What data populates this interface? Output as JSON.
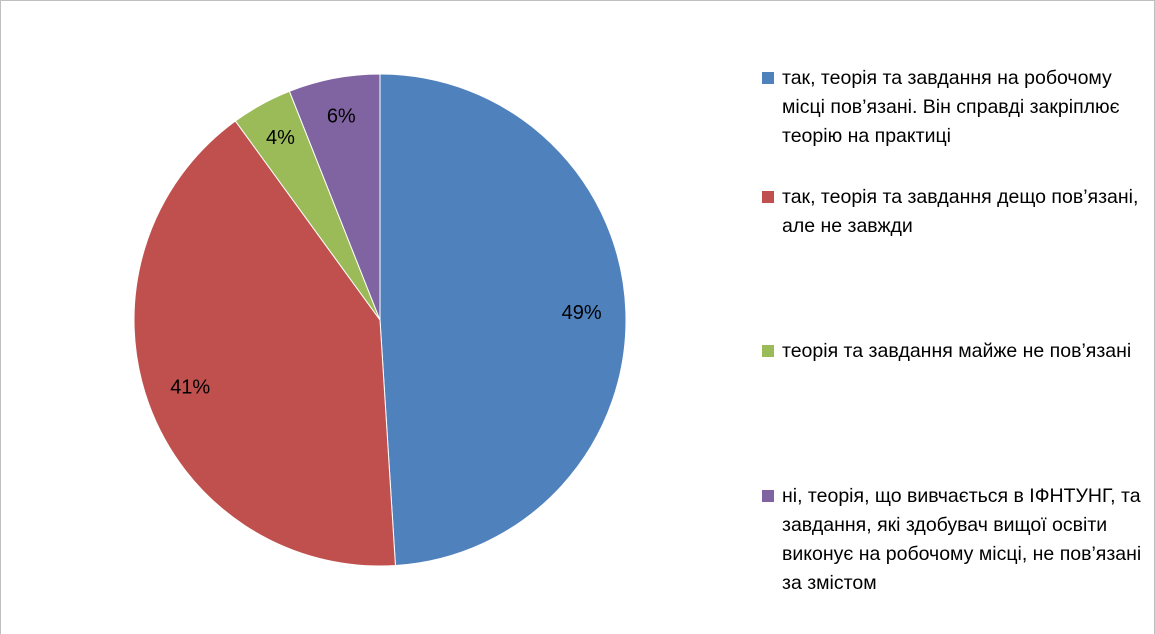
{
  "chart_data": {
    "type": "pie",
    "categories": [
      "так, теорія та завдання на робочому місці пов’язані. Він справді закріплює теорію на практиці",
      "так, теорія та завдання дещо пов’язані, але не завжди",
      "теорія та завдання майже не пов’язані",
      "ні, теорія, що вивчається в ІФНТУНГ, та завдання, які здобувач вищої освіти виконує на робочому місці, не пов’язані за змістом"
    ],
    "values": [
      49,
      41,
      4,
      6
    ],
    "value_labels": [
      "49%",
      "41%",
      "4%",
      "6%"
    ],
    "colors": [
      "#4f81bd",
      "#c0504d",
      "#9bbb59",
      "#8064a2"
    ],
    "legend": "right"
  }
}
